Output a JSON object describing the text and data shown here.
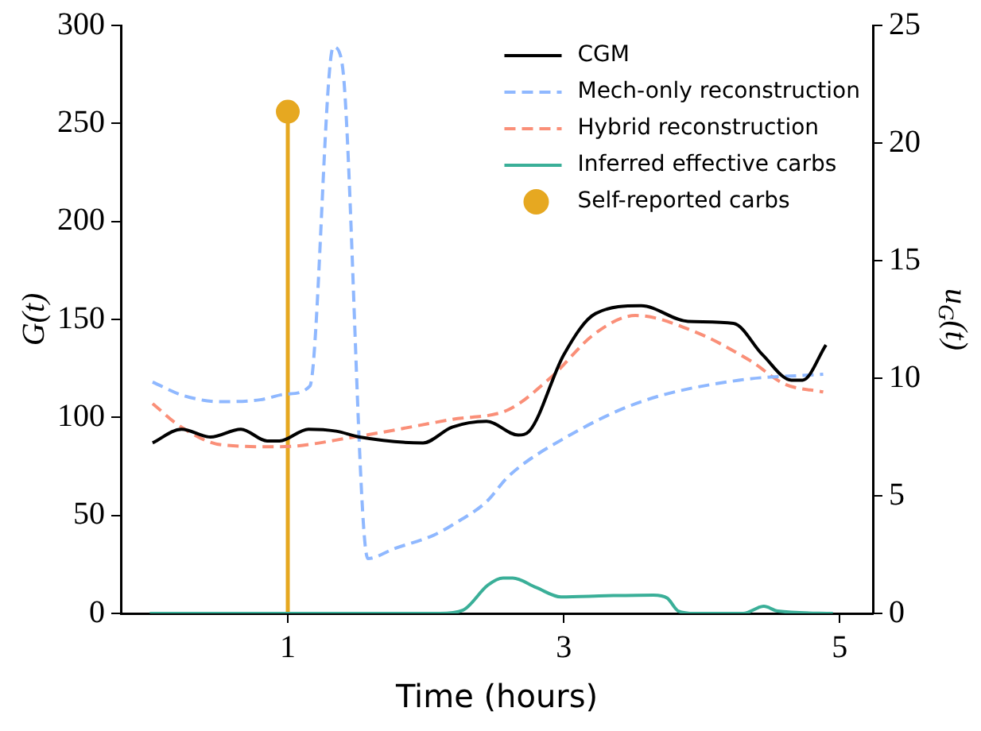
{
  "chart_data": {
    "type": "line",
    "xlabel": "Time (hours)",
    "ylabel": "G(t)",
    "y2label": "u$_{G}$(t)",
    "xlim": [
      -0.21,
      5.24
    ],
    "xticks": [
      1,
      3,
      5
    ],
    "ylim": [
      0,
      300
    ],
    "yticks": [
      0,
      50,
      100,
      150,
      200,
      250,
      300
    ],
    "y2lim": [
      0,
      25
    ],
    "y2ticks": [
      0,
      5,
      10,
      15,
      20,
      25
    ],
    "grid": false,
    "legend": "top right",
    "marker": "none",
    "series": [
      {
        "name": "CGM",
        "color": "#000000",
        "line_style": "solid",
        "x": [
          0.02,
          0.23,
          0.44,
          0.66,
          0.85,
          0.94,
          1.15,
          1.35,
          1.52,
          1.98,
          2.19,
          2.44,
          2.67,
          2.75,
          3.0,
          3.23,
          3.56,
          3.9,
          4.23,
          4.44,
          4.65,
          4.73,
          4.9
        ],
        "values": [
          87,
          94,
          90,
          94,
          88,
          88,
          94,
          93,
          90,
          87,
          95,
          98,
          91,
          93,
          132,
          153,
          157,
          149,
          148,
          132,
          119,
          119,
          137
        ]
      },
      {
        "name": "Mech-only reconstruction",
        "color": "#8fb8ff",
        "line_style": "dashed",
        "x": [
          0.02,
          0.25,
          0.52,
          0.8,
          1.0,
          1.16,
          1.33,
          1.38,
          1.41,
          1.58,
          1.77,
          2.06,
          2.19,
          2.44,
          2.6,
          3.02,
          3.56,
          4.27,
          4.88
        ],
        "values": [
          118,
          111,
          108,
          109,
          112,
          116,
          289,
          285,
          269,
          28,
          33,
          40,
          45,
          57,
          70,
          90,
          108,
          119,
          122
        ]
      },
      {
        "name": "Hybrid reconstruction",
        "color": "#fa8f78",
        "line_style": "dashed",
        "x": [
          0.02,
          0.23,
          0.52,
          0.94,
          1.48,
          2.19,
          2.6,
          2.9,
          3.23,
          3.52,
          3.94,
          4.35,
          4.6,
          4.88
        ],
        "values": [
          107,
          95,
          86,
          85,
          90,
          99,
          104,
          120,
          143,
          152,
          144,
          129,
          117,
          113
        ]
      },
      {
        "name": "Inferred effective carbs",
        "color": "#3aaf98",
        "line_style": "solid",
        "axis": "y2",
        "x": [
          0.0,
          2.1,
          2.27,
          2.45,
          2.56,
          2.63,
          2.8,
          2.98,
          3.31,
          3.65,
          3.75,
          3.83,
          3.95,
          4.3,
          4.45,
          4.55,
          4.95
        ],
        "values": [
          0,
          0,
          0.14,
          1.2,
          1.5,
          1.5,
          1.1,
          0.7,
          0.75,
          0.78,
          0.65,
          0.1,
          0,
          0,
          0.3,
          0.1,
          0
        ]
      },
      {
        "name": "Self-reported carbs",
        "color": "#e6a821",
        "type": "lollipop",
        "marker": "circle",
        "x": [
          1
        ],
        "values": [
          256
        ]
      }
    ]
  }
}
